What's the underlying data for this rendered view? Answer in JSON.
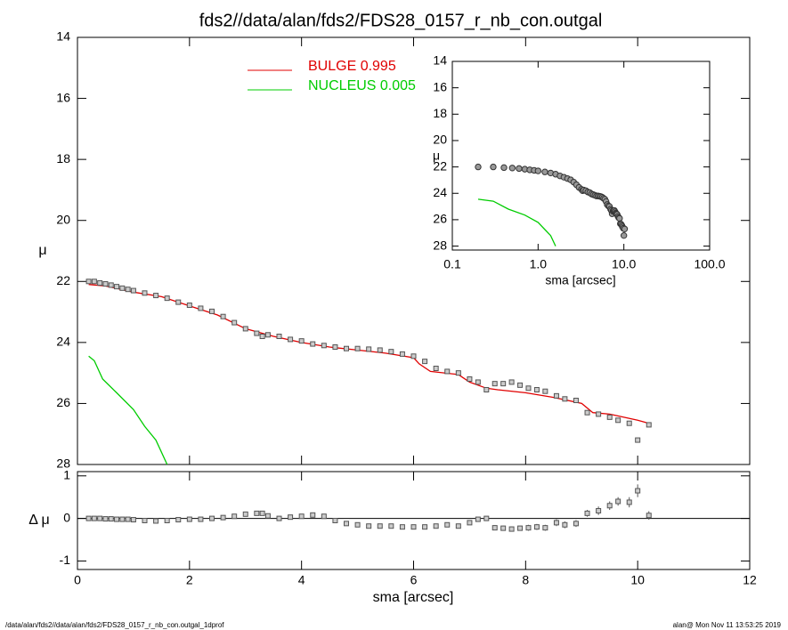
{
  "chart_data": [
    {
      "type": "line",
      "title": "fds2//data/alan/fds2/FDS28_0157_r_nb_con.outgal",
      "ylabel": "μ",
      "xlim": [
        0,
        12
      ],
      "ylim": [
        28,
        14
      ],
      "yticks": [
        14,
        16,
        18,
        20,
        22,
        24,
        26,
        28
      ],
      "series": [
        {
          "name": "BULGE  0.995",
          "color": "#e00000",
          "x": [
            0.2,
            0.5,
            1.0,
            1.5,
            2.0,
            2.5,
            3.0,
            3.5,
            4.0,
            4.5,
            5.0,
            5.5,
            6.0,
            6.1,
            6.3,
            6.8,
            7.0,
            7.3,
            7.5,
            8.0,
            8.5,
            9.0,
            9.2,
            9.5,
            10.0,
            10.2
          ],
          "values": [
            22.1,
            22.15,
            22.35,
            22.5,
            22.8,
            23.1,
            23.55,
            23.8,
            24.0,
            24.15,
            24.25,
            24.35,
            24.5,
            24.7,
            24.95,
            25.05,
            25.3,
            25.5,
            25.55,
            25.65,
            25.8,
            26.0,
            26.3,
            26.35,
            26.55,
            26.65
          ]
        },
        {
          "name": "NUCLEUS  0.005",
          "color": "#00cc00",
          "x": [
            0.2,
            0.3,
            0.45,
            0.7,
            1.0,
            1.2,
            1.4,
            1.6
          ],
          "values": [
            24.45,
            24.6,
            25.2,
            25.65,
            26.2,
            26.75,
            27.2,
            28.0
          ]
        },
        {
          "marker": "square",
          "color": "#555555",
          "x": [
            0.2,
            0.3,
            0.4,
            0.5,
            0.6,
            0.7,
            0.8,
            0.9,
            1.0,
            1.2,
            1.4,
            1.6,
            1.8,
            2.0,
            2.2,
            2.4,
            2.6,
            2.8,
            3.0,
            3.2,
            3.3,
            3.4,
            3.6,
            3.8,
            4.0,
            4.2,
            4.4,
            4.6,
            4.8,
            5.0,
            5.2,
            5.4,
            5.6,
            5.8,
            6.0,
            6.2,
            6.4,
            6.6,
            6.8,
            7.0,
            7.15,
            7.3,
            7.45,
            7.6,
            7.75,
            7.9,
            8.05,
            8.2,
            8.35,
            8.55,
            8.7,
            8.9,
            9.1,
            9.3,
            9.5,
            9.65,
            9.85,
            10.0,
            10.2
          ],
          "values": [
            22.0,
            22.0,
            22.05,
            22.08,
            22.12,
            22.17,
            22.22,
            22.26,
            22.3,
            22.38,
            22.46,
            22.55,
            22.68,
            22.78,
            22.88,
            22.98,
            23.15,
            23.35,
            23.55,
            23.7,
            23.8,
            23.75,
            23.8,
            23.9,
            23.95,
            24.05,
            24.1,
            24.15,
            24.2,
            24.2,
            24.22,
            24.25,
            24.3,
            24.38,
            24.45,
            24.62,
            24.85,
            24.95,
            25.0,
            25.2,
            25.3,
            25.55,
            25.35,
            25.35,
            25.3,
            25.4,
            25.5,
            25.55,
            25.6,
            25.75,
            25.85,
            25.9,
            26.3,
            26.35,
            26.45,
            26.55,
            26.65,
            27.2,
            26.7
          ]
        }
      ]
    },
    {
      "type": "errorbar",
      "xlabel": "sma [arcsec]",
      "ylabel": "Δ μ",
      "xlim": [
        0,
        12
      ],
      "xticks": [
        0,
        2,
        4,
        6,
        8,
        10,
        12
      ],
      "ylim": [
        -1.2,
        1.1
      ],
      "yticks": [
        -1,
        0,
        1
      ],
      "zero_line": true,
      "series": [
        {
          "color": "#555555",
          "x": [
            0.2,
            0.3,
            0.4,
            0.5,
            0.6,
            0.7,
            0.8,
            0.9,
            1.0,
            1.2,
            1.4,
            1.6,
            1.8,
            2.0,
            2.2,
            2.4,
            2.6,
            2.8,
            3.0,
            3.2,
            3.3,
            3.4,
            3.6,
            3.8,
            4.0,
            4.2,
            4.4,
            4.6,
            4.8,
            5.0,
            5.2,
            5.4,
            5.6,
            5.8,
            6.0,
            6.2,
            6.4,
            6.6,
            6.8,
            7.0,
            7.15,
            7.3,
            7.45,
            7.6,
            7.75,
            7.9,
            8.05,
            8.2,
            8.35,
            8.55,
            8.7,
            8.9,
            9.1,
            9.3,
            9.5,
            9.65,
            9.85,
            10.0,
            10.2
          ],
          "values": [
            0,
            0,
            0,
            -0.01,
            -0.01,
            -0.02,
            -0.02,
            -0.02,
            -0.03,
            -0.05,
            -0.06,
            -0.05,
            -0.03,
            -0.02,
            -0.02,
            0,
            0.02,
            0.05,
            0.1,
            0.12,
            0.12,
            0.06,
            0,
            0.03,
            0.05,
            0.08,
            0.05,
            -0.05,
            -0.12,
            -0.15,
            -0.18,
            -0.18,
            -0.18,
            -0.2,
            -0.2,
            -0.2,
            -0.18,
            -0.15,
            -0.18,
            -0.1,
            -0.02,
            0,
            -0.22,
            -0.23,
            -0.25,
            -0.23,
            -0.22,
            -0.2,
            -0.22,
            -0.1,
            -0.15,
            -0.12,
            0.12,
            0.18,
            0.3,
            0.4,
            0.38,
            0.65,
            0.07
          ],
          "errors": [
            0.01,
            0.01,
            0.01,
            0.01,
            0.01,
            0.01,
            0.01,
            0.01,
            0.01,
            0.01,
            0.01,
            0.01,
            0.01,
            0.01,
            0.01,
            0.01,
            0.01,
            0.01,
            0.01,
            0.01,
            0.01,
            0.01,
            0.01,
            0.01,
            0.01,
            0.01,
            0.01,
            0.01,
            0.01,
            0.01,
            0.01,
            0.01,
            0.01,
            0.01,
            0.01,
            0.01,
            0.01,
            0.01,
            0.01,
            0.01,
            0.04,
            0.05,
            0.06,
            0.06,
            0.06,
            0.06,
            0.07,
            0.07,
            0.07,
            0.08,
            0.08,
            0.08,
            0.08,
            0.1,
            0.1,
            0.1,
            0.12,
            0.15,
            0.1
          ]
        }
      ]
    },
    {
      "type": "inset",
      "xlabel": "sma [arcsec]",
      "ylabel": "μ",
      "xlog": true,
      "xlim": [
        0.1,
        100
      ],
      "xticks": [
        {
          "value": 0.1,
          "label": "0.1"
        },
        {
          "value": 1,
          "label": "1.0"
        },
        {
          "value": 10,
          "label": "10.0"
        },
        {
          "value": 100,
          "label": "100.0"
        }
      ],
      "ylim": [
        28.3,
        14
      ],
      "yticks": [
        14,
        16,
        18,
        20,
        22,
        24,
        26,
        28
      ]
    }
  ],
  "footer": {
    "left": "/data/alan/fds2//data/alan/fds2/FDS28_0157_r_nb_con.outgal_1dprof",
    "right": "alan@  Mon Nov 11 13:53:25 2019"
  }
}
